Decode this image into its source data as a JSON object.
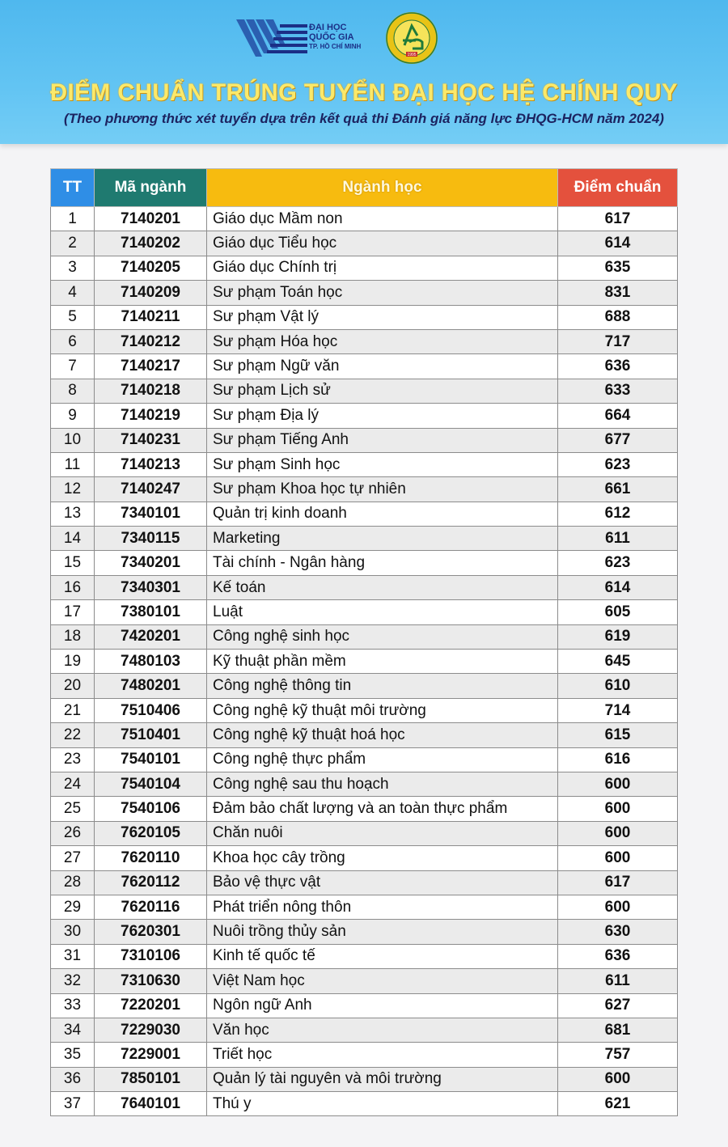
{
  "header": {
    "logo1_text": [
      "ĐẠI HỌC",
      "QUỐC GIA",
      "TP. HỒ CHÍ MINH"
    ],
    "logo2_text": "1995",
    "title": "ĐIỂM CHUẨN TRÚNG TUYỂN ĐẠI HỌC HỆ CHÍNH QUY",
    "subtitle": "(Theo phương thức xét tuyển dựa trên kết quả thi Đánh giá năng lực ĐHQG-HCM năm 2024)"
  },
  "colors": {
    "banner": "#5ec1f2",
    "title": "#fbe96a",
    "col_tt": "#2f8ee6",
    "col_code": "#1f7a70",
    "col_name": "#f7bb0f",
    "col_score": "#e4513d"
  },
  "table": {
    "columns": [
      "TT",
      "Mã ngành",
      "Ngành học",
      "Điểm chuẩn"
    ],
    "rows": [
      [
        "1",
        "7140201",
        "Giáo dục Mầm non",
        "617"
      ],
      [
        "2",
        "7140202",
        "Giáo dục Tiểu học",
        "614"
      ],
      [
        "3",
        "7140205",
        "Giáo dục Chính trị",
        "635"
      ],
      [
        "4",
        "7140209",
        "Sư phạm Toán học",
        "831"
      ],
      [
        "5",
        "7140211",
        "Sư phạm Vật lý",
        "688"
      ],
      [
        "6",
        "7140212",
        "Sư phạm Hóa học",
        "717"
      ],
      [
        "7",
        "7140217",
        "Sư phạm Ngữ văn",
        "636"
      ],
      [
        "8",
        "7140218",
        "Sư phạm Lịch sử",
        "633"
      ],
      [
        "9",
        "7140219",
        "Sư phạm Địa lý",
        "664"
      ],
      [
        "10",
        "7140231",
        "Sư phạm Tiếng Anh",
        "677"
      ],
      [
        "11",
        "7140213",
        "Sư phạm Sinh học",
        "623"
      ],
      [
        "12",
        "7140247",
        "Sư phạm Khoa học tự nhiên",
        "661"
      ],
      [
        "13",
        "7340101",
        "Quản trị kinh doanh",
        "612"
      ],
      [
        "14",
        "7340115",
        "Marketing",
        "611"
      ],
      [
        "15",
        "7340201",
        "Tài chính - Ngân hàng",
        "623"
      ],
      [
        "16",
        "7340301",
        "Kế toán",
        "614"
      ],
      [
        "17",
        "7380101",
        "Luật",
        "605"
      ],
      [
        "18",
        "7420201",
        "Công nghệ sinh học",
        "619"
      ],
      [
        "19",
        "7480103",
        "Kỹ thuật phần mềm",
        "645"
      ],
      [
        "20",
        "7480201",
        "Công nghệ thông tin",
        "610"
      ],
      [
        "21",
        "7510406",
        "Công nghệ kỹ thuật môi trường",
        "714"
      ],
      [
        "22",
        "7510401",
        "Công nghệ kỹ thuật hoá học",
        "615"
      ],
      [
        "23",
        "7540101",
        "Công nghệ thực phẩm",
        "616"
      ],
      [
        "24",
        "7540104",
        "Công nghệ sau thu hoạch",
        "600"
      ],
      [
        "25",
        "7540106",
        "Đảm bảo chất lượng và an toàn thực phẩm",
        "600"
      ],
      [
        "26",
        "7620105",
        "Chăn nuôi",
        "600"
      ],
      [
        "27",
        "7620110",
        "Khoa học cây trồng",
        "600"
      ],
      [
        "28",
        "7620112",
        "Bảo vệ thực vật",
        "617"
      ],
      [
        "29",
        "7620116",
        "Phát triển nông thôn",
        "600"
      ],
      [
        "30",
        "7620301",
        "Nuôi trồng thủy sản",
        "630"
      ],
      [
        "31",
        "7310106",
        "Kinh tế quốc tế",
        "636"
      ],
      [
        "32",
        "7310630",
        "Việt Nam học",
        "611"
      ],
      [
        "33",
        "7220201",
        "Ngôn ngữ Anh",
        "627"
      ],
      [
        "34",
        "7229030",
        "Văn học",
        "681"
      ],
      [
        "35",
        "7229001",
        "Triết học",
        "757"
      ],
      [
        "36",
        "7850101",
        "Quản lý tài nguyên và môi trường",
        "600"
      ],
      [
        "37",
        "7640101",
        "Thú y",
        "621"
      ]
    ]
  }
}
